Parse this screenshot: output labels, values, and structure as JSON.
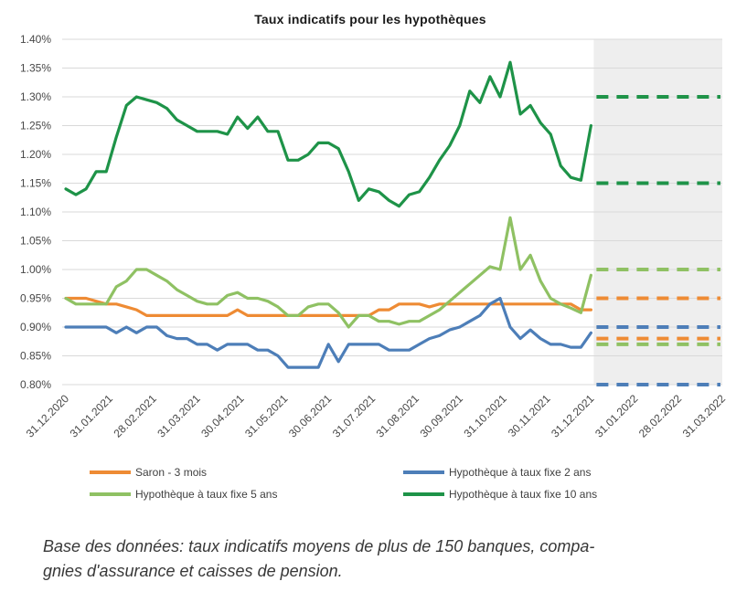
{
  "title": "Taux indicatifs pour les hypothèques",
  "colors": {
    "background": "#ffffff",
    "grid": "#d9d9d9",
    "forecast_region": "#eeeeee",
    "axis_text": "#474747",
    "title_text": "#1a1a1a",
    "legend_text": "#404040",
    "footer_text": "#383838"
  },
  "chart_data": {
    "type": "line",
    "title": "Taux indicatifs pour les hypothèques",
    "x_labels": [
      "31.12.2020",
      "31.01.2021",
      "28.02.2021",
      "31.03.2021",
      "30.04.2021",
      "31.05.2021",
      "30.06.2021",
      "31.07.2021",
      "31.08.2021",
      "30.09.2021",
      "31.10.2021",
      "30.11.2021",
      "31.12.2021",
      "31.01.2022",
      "28.02.2022",
      "31.03.2022"
    ],
    "solid_end_tick_index": 12,
    "points_interval": "weekly",
    "ylim": [
      0.8,
      1.4
    ],
    "y_ticks": [
      {
        "value": 1.4,
        "label": "1.40%"
      },
      {
        "value": 1.35,
        "label": "1.35%"
      },
      {
        "value": 1.3,
        "label": "1.30%"
      },
      {
        "value": 1.25,
        "label": "1.25%"
      },
      {
        "value": 1.2,
        "label": "1.20%"
      },
      {
        "value": 1.15,
        "label": "1.15%"
      },
      {
        "value": 1.1,
        "label": "1.10%"
      },
      {
        "value": 1.05,
        "label": "1.05%"
      },
      {
        "value": 1.0,
        "label": "1.00%"
      },
      {
        "value": 0.95,
        "label": "0.95%"
      },
      {
        "value": 0.9,
        "label": "0.90%"
      },
      {
        "value": 0.85,
        "label": "0.85%"
      },
      {
        "value": 0.8,
        "label": "0.80%"
      }
    ],
    "gridlines": "horizontal",
    "legend_position": "bottom",
    "forecast_style": "dashed",
    "series": [
      {
        "name": "Saron - 3 mois",
        "color": "#ee8b34",
        "forecast_high": 0.95,
        "forecast_low": 0.88,
        "values": [
          0.95,
          0.95,
          0.95,
          0.945,
          0.94,
          0.94,
          0.935,
          0.93,
          0.92,
          0.92,
          0.92,
          0.92,
          0.92,
          0.92,
          0.92,
          0.92,
          0.92,
          0.93,
          0.92,
          0.92,
          0.92,
          0.92,
          0.92,
          0.92,
          0.92,
          0.92,
          0.92,
          0.92,
          0.92,
          0.92,
          0.92,
          0.93,
          0.93,
          0.94,
          0.94,
          0.94,
          0.935,
          0.94,
          0.94,
          0.94,
          0.94,
          0.94,
          0.94,
          0.94,
          0.94,
          0.94,
          0.94,
          0.94,
          0.94,
          0.94,
          0.94,
          0.93,
          0.93
        ]
      },
      {
        "name": "Hypothèque à taux fixe 2 ans",
        "color": "#4d7eb8",
        "forecast_high": 0.9,
        "forecast_low": 0.8,
        "values": [
          0.9,
          0.9,
          0.9,
          0.9,
          0.9,
          0.89,
          0.9,
          0.89,
          0.9,
          0.9,
          0.885,
          0.88,
          0.88,
          0.87,
          0.87,
          0.86,
          0.87,
          0.87,
          0.87,
          0.86,
          0.86,
          0.85,
          0.83,
          0.83,
          0.83,
          0.83,
          0.87,
          0.84,
          0.87,
          0.87,
          0.87,
          0.87,
          0.86,
          0.86,
          0.86,
          0.87,
          0.88,
          0.885,
          0.895,
          0.9,
          0.91,
          0.92,
          0.94,
          0.95,
          0.9,
          0.88,
          0.895,
          0.88,
          0.87,
          0.87,
          0.865,
          0.865,
          0.89
        ]
      },
      {
        "name": "Hypothèque à taux fixe 5 ans",
        "color": "#8fc163",
        "forecast_high": 1.0,
        "forecast_low": 0.87,
        "values": [
          0.95,
          0.94,
          0.94,
          0.94,
          0.94,
          0.97,
          0.98,
          1.0,
          1.0,
          0.99,
          0.98,
          0.965,
          0.955,
          0.945,
          0.94,
          0.94,
          0.955,
          0.96,
          0.95,
          0.95,
          0.945,
          0.935,
          0.92,
          0.92,
          0.935,
          0.94,
          0.94,
          0.925,
          0.9,
          0.92,
          0.92,
          0.91,
          0.91,
          0.905,
          0.91,
          0.91,
          0.92,
          0.93,
          0.945,
          0.96,
          0.975,
          0.99,
          1.005,
          1.0,
          1.09,
          1.0,
          1.025,
          0.98,
          0.95,
          0.94,
          0.933,
          0.925,
          0.99
        ]
      },
      {
        "name": "Hypothèque à taux fixe 10 ans",
        "color": "#1e9348",
        "forecast_high": 1.3,
        "forecast_low": 1.15,
        "values": [
          1.14,
          1.13,
          1.14,
          1.17,
          1.17,
          1.23,
          1.285,
          1.3,
          1.295,
          1.29,
          1.28,
          1.26,
          1.25,
          1.24,
          1.24,
          1.24,
          1.235,
          1.265,
          1.245,
          1.265,
          1.24,
          1.24,
          1.19,
          1.19,
          1.2,
          1.22,
          1.22,
          1.21,
          1.17,
          1.12,
          1.14,
          1.135,
          1.12,
          1.11,
          1.13,
          1.135,
          1.16,
          1.19,
          1.215,
          1.25,
          1.31,
          1.29,
          1.335,
          1.3,
          1.36,
          1.27,
          1.285,
          1.255,
          1.235,
          1.18,
          1.16,
          1.155,
          1.25
        ]
      }
    ]
  },
  "footer": {
    "line1": "Base des données: taux indicatifs moyens de plus de 150 banques, compa-",
    "line2": "gnies d'assurance et caisses de pension."
  }
}
